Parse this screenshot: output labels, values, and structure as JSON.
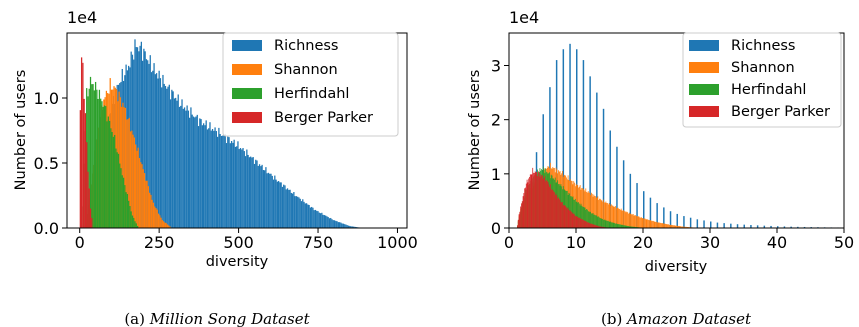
{
  "chart_data": [
    {
      "type": "histogram",
      "caption_prefix": "(a)",
      "caption_title": "Million Song Dataset",
      "xlabel": "diversity",
      "ylabel": "Number of users",
      "y_scale_label": "1e4",
      "xlim": [
        -40,
        1030
      ],
      "ylim": [
        0,
        15000
      ],
      "x_ticks": [
        0,
        250,
        500,
        750,
        1000
      ],
      "y_ticks": [
        0,
        5000,
        10000
      ],
      "y_tick_labels": [
        "0.0",
        "0.5",
        "1.0"
      ],
      "legend_position": "top-right",
      "series": [
        {
          "name": "Richness",
          "color": "#1f77b4",
          "bin_width": 4,
          "profile": [
            [
              32,
              0
            ],
            [
              50,
              2500
            ],
            [
              80,
              7500
            ],
            [
              120,
              11000
            ],
            [
              155,
              12500
            ],
            [
              175,
              14000
            ],
            [
              195,
              13800
            ],
            [
              230,
              12300
            ],
            [
              270,
              11000
            ],
            [
              320,
              9500
            ],
            [
              380,
              8200
            ],
            [
              440,
              7300
            ],
            [
              500,
              6300
            ],
            [
              560,
              5000
            ],
            [
              620,
              3700
            ],
            [
              680,
              2500
            ],
            [
              740,
              1400
            ],
            [
              800,
              600
            ],
            [
              850,
              150
            ],
            [
              890,
              0
            ]
          ]
        },
        {
          "name": "Shannon",
          "color": "#ff7f0e",
          "bin_width": 4,
          "profile": [
            [
              18,
              0
            ],
            [
              35,
              3000
            ],
            [
              55,
              7500
            ],
            [
              75,
              9800
            ],
            [
              95,
              10900
            ],
            [
              110,
              10800
            ],
            [
              140,
              9300
            ],
            [
              170,
              7000
            ],
            [
              200,
              4500
            ],
            [
              230,
              2000
            ],
            [
              260,
              600
            ],
            [
              290,
              0
            ]
          ]
        },
        {
          "name": "Herfindahl",
          "color": "#2ca02c",
          "bin_width": 4,
          "profile": [
            [
              8,
              0
            ],
            [
              14,
              5000
            ],
            [
              22,
              10200
            ],
            [
              35,
              11300
            ],
            [
              55,
              10600
            ],
            [
              80,
              9200
            ],
            [
              110,
              6800
            ],
            [
              140,
              3500
            ],
            [
              165,
              1000
            ],
            [
              185,
              0
            ]
          ]
        },
        {
          "name": "Berger Parker",
          "color": "#d62728",
          "bin_width": 4,
          "profile": [
            [
              0,
              0
            ],
            [
              2,
              9000
            ],
            [
              7,
              14000
            ],
            [
              11,
              12000
            ],
            [
              18,
              8500
            ],
            [
              26,
              4500
            ],
            [
              34,
              1500
            ],
            [
              42,
              0
            ]
          ]
        }
      ]
    },
    {
      "type": "histogram",
      "caption_prefix": "(b)",
      "caption_title": "Amazon Dataset",
      "xlabel": "diversity",
      "ylabel": "Number of users",
      "y_scale_label": "1e4",
      "xlim": [
        0,
        50
      ],
      "ylim": [
        0,
        36000
      ],
      "x_ticks": [
        0,
        10,
        20,
        30,
        40,
        50
      ],
      "y_ticks": [
        0,
        10000,
        20000,
        30000
      ],
      "y_tick_labels": [
        "0",
        "1",
        "2",
        "3"
      ],
      "legend_position": "top-right",
      "series": [
        {
          "name": "Richness",
          "color": "#1f77b4",
          "bin_width": 0.22,
          "values": [
            [
              2,
              2000
            ],
            [
              3,
              7000
            ],
            [
              4,
              14000
            ],
            [
              5,
              21000
            ],
            [
              6,
              26000
            ],
            [
              7,
              31000
            ],
            [
              8,
              33000
            ],
            [
              9,
              34000
            ],
            [
              10,
              33000
            ],
            [
              11,
              31000
            ],
            [
              12,
              28000
            ],
            [
              13,
              25000
            ],
            [
              14,
              22000
            ],
            [
              15,
              18000
            ],
            [
              16,
              15000
            ],
            [
              17,
              12500
            ],
            [
              18,
              10000
            ],
            [
              19,
              8300
            ],
            [
              20,
              6800
            ],
            [
              21,
              5600
            ],
            [
              22,
              4600
            ],
            [
              23,
              3800
            ],
            [
              24,
              3100
            ],
            [
              25,
              2600
            ],
            [
              26,
              2200
            ],
            [
              27,
              1900
            ],
            [
              28,
              1600
            ],
            [
              29,
              1400
            ],
            [
              30,
              1200
            ],
            [
              31,
              1000
            ],
            [
              32,
              900
            ],
            [
              33,
              800
            ],
            [
              34,
              700
            ],
            [
              35,
              620
            ],
            [
              36,
              550
            ],
            [
              37,
              490
            ],
            [
              38,
              430
            ],
            [
              39,
              380
            ],
            [
              40,
              330
            ],
            [
              41,
              290
            ],
            [
              42,
              250
            ],
            [
              43,
              220
            ],
            [
              44,
              190
            ],
            [
              45,
              170
            ],
            [
              46,
              150
            ],
            [
              47,
              130
            ],
            [
              48,
              110
            ],
            [
              49,
              100
            ]
          ]
        },
        {
          "name": "Shannon",
          "color": "#ff7f0e",
          "bin_width": 0.12,
          "profile": [
            [
              1.2,
              0
            ],
            [
              1.6,
              3000
            ],
            [
              3,
              7000
            ],
            [
              5,
              10000
            ],
            [
              6,
              11500
            ],
            [
              8,
              10000
            ],
            [
              10,
              8000
            ],
            [
              12,
              6500
            ],
            [
              14,
              5000
            ],
            [
              16,
              3800
            ],
            [
              18,
              2700
            ],
            [
              20,
              1800
            ],
            [
              22,
              1100
            ],
            [
              24,
              600
            ],
            [
              26,
              250
            ],
            [
              28,
              50
            ],
            [
              29,
              0
            ]
          ]
        },
        {
          "name": "Herfindahl",
          "color": "#2ca02c",
          "bin_width": 0.12,
          "profile": [
            [
              1.2,
              0
            ],
            [
              1.5,
              2000
            ],
            [
              2.5,
              7000
            ],
            [
              4,
              10000
            ],
            [
              5,
              11000
            ],
            [
              6,
              10000
            ],
            [
              8,
              7500
            ],
            [
              10,
              5000
            ],
            [
              12,
              3000
            ],
            [
              14,
              1600
            ],
            [
              16,
              800
            ],
            [
              18,
              300
            ],
            [
              20,
              50
            ],
            [
              21,
              0
            ]
          ]
        },
        {
          "name": "Berger Parker",
          "color": "#d62728",
          "bin_width": 0.12,
          "profile": [
            [
              1.2,
              0
            ],
            [
              1.5,
              2500
            ],
            [
              2.5,
              8000
            ],
            [
              3.5,
              10500
            ],
            [
              4.5,
              10000
            ],
            [
              5.5,
              9000
            ],
            [
              6.5,
              7000
            ],
            [
              8,
              4500
            ],
            [
              10,
              2200
            ],
            [
              12,
              900
            ],
            [
              13.5,
              300
            ],
            [
              15,
              0
            ]
          ]
        }
      ]
    }
  ]
}
